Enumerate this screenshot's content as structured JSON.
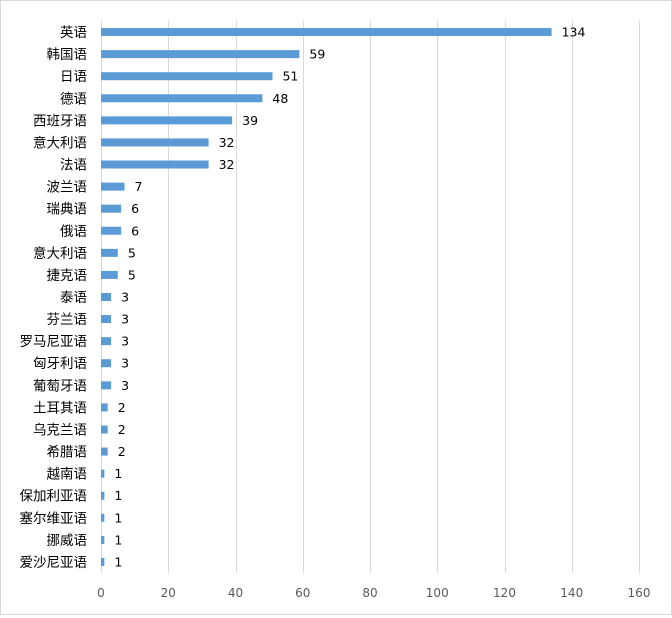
{
  "chart_data": {
    "type": "bar",
    "orientation": "horizontal",
    "categories": [
      "英语",
      "韩国语",
      "日语",
      "德语",
      "西班牙语",
      "意大利语",
      "法语",
      "波兰语",
      "瑞典语",
      "俄语",
      "意大利语",
      "捷克语",
      "泰语",
      "芬兰语",
      "罗马尼亚语",
      "匈牙利语",
      "葡萄牙语",
      "土耳其语",
      "乌克兰语",
      "希腊语",
      "越南语",
      "保加利亚语",
      "塞尔维亚语",
      "挪威语",
      "爱沙尼亚语"
    ],
    "values": [
      134,
      59,
      51,
      48,
      39,
      32,
      32,
      7,
      6,
      6,
      5,
      5,
      3,
      3,
      3,
      3,
      3,
      2,
      2,
      2,
      1,
      1,
      1,
      1,
      1
    ],
    "xlim": [
      0,
      160
    ],
    "xticks": [
      0,
      20,
      40,
      60,
      80,
      100,
      120,
      140,
      160
    ],
    "grid": true,
    "legend": "none",
    "data_labels": true,
    "title": "",
    "xlabel": "",
    "ylabel": "",
    "colors": {
      "bar": "#5b9bd5",
      "grid": "#d9d9d9",
      "text": "#595959",
      "category_text": "#000000"
    }
  }
}
